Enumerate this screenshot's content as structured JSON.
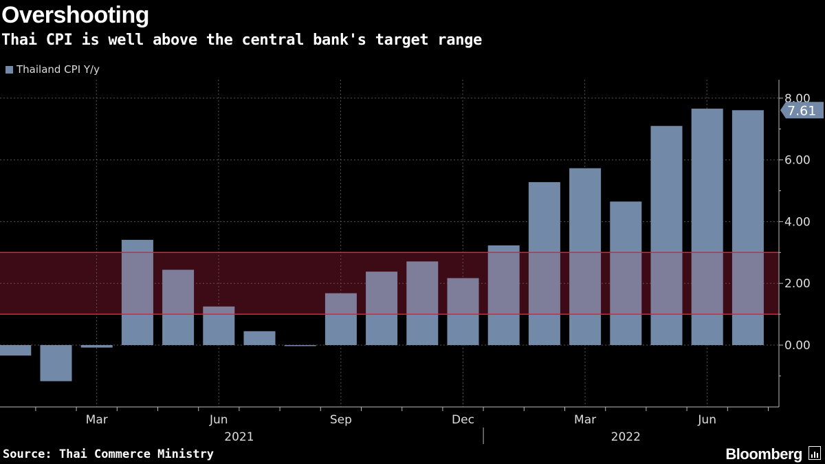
{
  "title": "Overshooting",
  "subtitle": "Thai CPI is well above the central bank's target range",
  "source": "Source: Thai Commerce Ministry",
  "brand": "Bloomberg",
  "colors": {
    "bar": "#7389a8",
    "band_line": "#d12a3b",
    "band_fill": "#2a0710",
    "grid": "#555555",
    "background": "#000000"
  },
  "chart_data": {
    "type": "bar",
    "title": "Overshooting",
    "subtitle": "Thai CPI is well above the central bank's target range",
    "series": [
      {
        "name": "Thailand CPI Y/y",
        "categories": [
          "2021-01",
          "2021-02",
          "2021-03",
          "2021-04",
          "2021-05",
          "2021-06",
          "2021-07",
          "2021-08",
          "2021-09",
          "2021-10",
          "2021-11",
          "2021-12",
          "2022-01",
          "2022-02",
          "2022-03",
          "2022-04",
          "2022-05",
          "2022-06",
          "2022-07"
        ],
        "values": [
          -0.34,
          -1.17,
          -0.08,
          3.41,
          2.44,
          1.25,
          0.45,
          -0.02,
          1.68,
          2.38,
          2.71,
          2.17,
          3.23,
          5.28,
          5.73,
          4.65,
          7.1,
          7.66,
          7.61
        ]
      }
    ],
    "target_band": {
      "low": 1.0,
      "high": 3.0
    },
    "ylim": [
      -2,
      8.6
    ],
    "yticks": [
      0,
      2,
      4,
      6,
      8
    ],
    "ytick_labels": [
      "0.00",
      "2.00",
      "4.00",
      "6.00",
      "8.00"
    ],
    "xticks": [
      {
        "index": 2,
        "label": "Mar"
      },
      {
        "index": 5,
        "label": "Jun"
      },
      {
        "index": 8,
        "label": "Sep"
      },
      {
        "index": 11,
        "label": "Dec"
      },
      {
        "index": 14,
        "label": "Mar"
      },
      {
        "index": 17,
        "label": "Jun"
      }
    ],
    "years": [
      {
        "label": "2021",
        "center_index": 5.5
      },
      {
        "label": "2022",
        "center_index": 15.0
      }
    ],
    "year_divider_after_index": 11,
    "last_value_label": "7.61",
    "legend": "Thailand CPI Y/y",
    "legend_position": "top-left",
    "xlabel": "",
    "ylabel": ""
  }
}
